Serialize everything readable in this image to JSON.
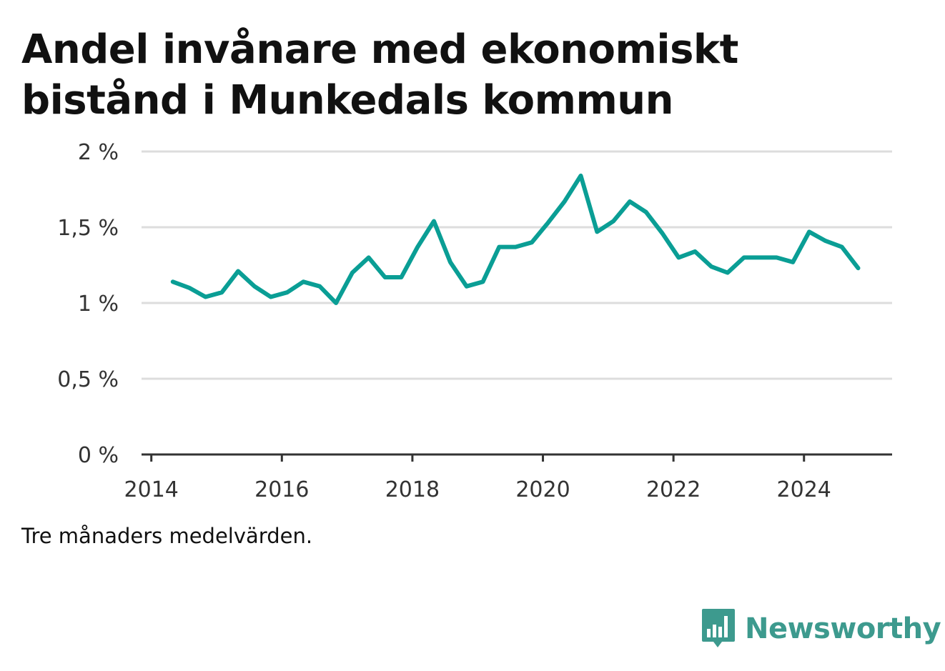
{
  "title": "Andel invånare med ekonomiskt bistånd i Munkedals kommun",
  "note": "Tre månaders medelvärden.",
  "brand": {
    "name": "Newsworthy",
    "icon": "bar-chart-speech-bubble-icon",
    "color": "#3d9a8e"
  },
  "colors": {
    "line": "#0a9e95",
    "grid": "#dddddd",
    "axis": "#333333",
    "text": "#333333"
  },
  "chart_data": {
    "type": "line",
    "title": "Andel invånare med ekonomiskt bistånd i Munkedals kommun",
    "xlabel": "",
    "ylabel": "",
    "xlim": [
      2013.85,
      2025.35
    ],
    "ylim": [
      0,
      2
    ],
    "x_ticks": [
      2014,
      2016,
      2018,
      2020,
      2022,
      2024
    ],
    "x_tick_labels": [
      "2014",
      "2016",
      "2018",
      "2020",
      "2022",
      "2024"
    ],
    "y_ticks": [
      0,
      0.5,
      1,
      1.5,
      2
    ],
    "y_tick_labels": [
      "0 %",
      "0,5 %",
      "1 %",
      "1,5 %",
      "2 %"
    ],
    "grid": true,
    "series": [
      {
        "x": [
          2014.33,
          2014.58,
          2014.83,
          2015.08,
          2015.33,
          2015.58,
          2015.83,
          2016.08,
          2016.33,
          2016.58,
          2016.83,
          2017.08,
          2017.33,
          2017.58,
          2017.83,
          2018.08,
          2018.33,
          2018.58,
          2018.83,
          2019.08,
          2019.33,
          2019.58,
          2019.83,
          2020.08,
          2020.33,
          2020.58,
          2020.83,
          2021.08,
          2021.33,
          2021.58,
          2021.83,
          2022.08,
          2022.33,
          2022.58,
          2022.83,
          2023.08,
          2023.33,
          2023.58,
          2023.83,
          2024.08,
          2024.33,
          2024.58,
          2024.83
        ],
        "values": [
          1.14,
          1.1,
          1.04,
          1.07,
          1.21,
          1.11,
          1.04,
          1.07,
          1.14,
          1.11,
          1.0,
          1.2,
          1.3,
          1.17,
          1.17,
          1.37,
          1.54,
          1.27,
          1.11,
          1.14,
          1.37,
          1.37,
          1.4,
          1.53,
          1.67,
          1.84,
          1.47,
          1.54,
          1.67,
          1.6,
          1.46,
          1.3,
          1.34,
          1.24,
          1.2,
          1.3,
          1.3,
          1.3,
          1.27,
          1.47,
          1.41,
          1.37,
          1.23
        ]
      }
    ]
  }
}
